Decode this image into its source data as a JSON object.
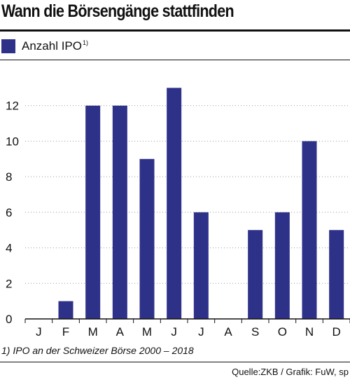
{
  "title": "Wann die Börsengänge stattfinden",
  "legend": {
    "label": "Anzahl IPO",
    "footnote_mark": "1)"
  },
  "footnote": "1) IPO an der Schweizer Börse 2000 – 2018",
  "source": "Quelle:ZKB / Grafik: FuW, sp",
  "colors": {
    "bar": "#2e3188",
    "grid": "#999999",
    "axis": "#111111"
  },
  "chart_data": {
    "type": "bar",
    "title": "Wann die Börsengänge stattfinden",
    "xlabel": "",
    "ylabel": "",
    "categories": [
      "J",
      "F",
      "M",
      "A",
      "M",
      "J",
      "J",
      "A",
      "S",
      "O",
      "N",
      "D"
    ],
    "series": [
      {
        "name": "Anzahl IPO",
        "values": [
          0,
          1,
          12,
          12,
          9,
          13,
          6,
          0,
          5,
          6,
          10,
          5
        ]
      }
    ],
    "yticks": [
      0,
      2,
      4,
      6,
      8,
      10,
      12
    ],
    "ylim": [
      0,
      14
    ],
    "grid": "horizontal dotted",
    "legend_position": "top-left"
  }
}
